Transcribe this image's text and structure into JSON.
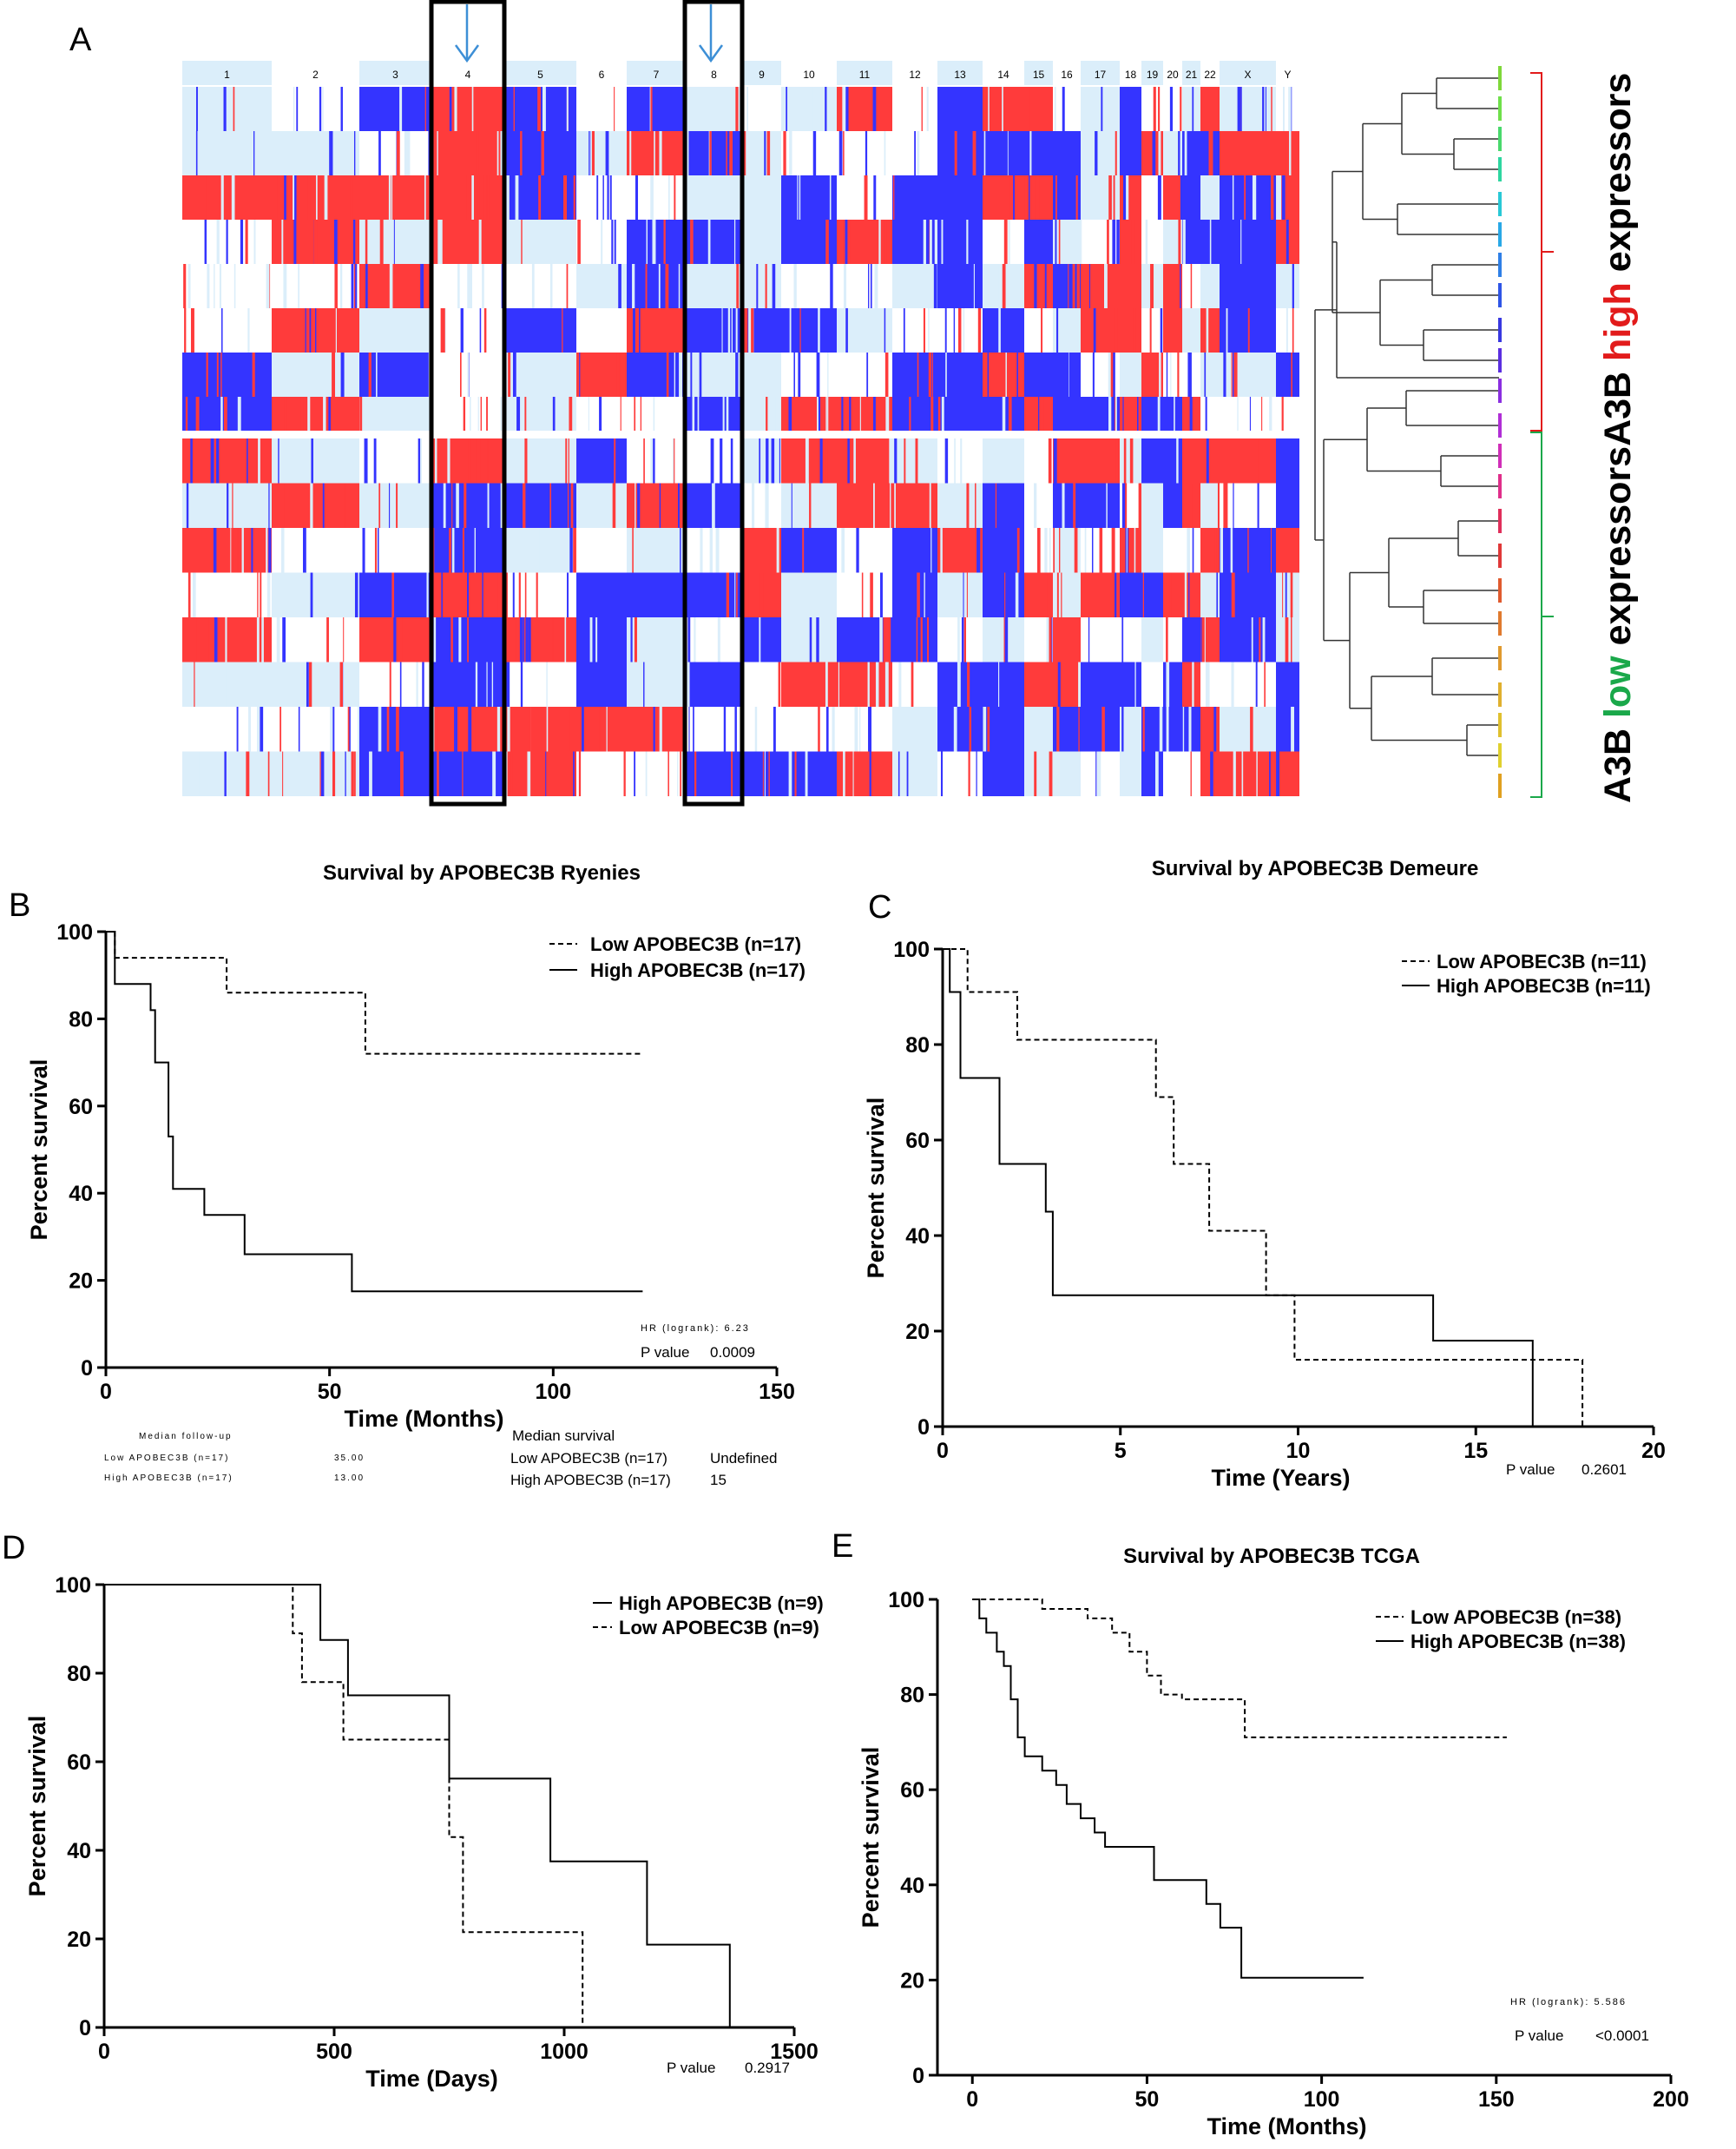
{
  "panel_a": {
    "letter": "A",
    "chromosomes": [
      "1",
      "2",
      "3",
      "4",
      "5",
      "6",
      "7",
      "8",
      "9",
      "10",
      "11",
      "12",
      "13",
      "14",
      "15",
      "16",
      "17",
      "18",
      "19",
      "20",
      "21",
      "22",
      "X",
      "Y"
    ],
    "side_label": {
      "part1": "A3B ",
      "low": "low",
      "part2": " expressors",
      "part3": "A3B ",
      "high": "high",
      "part4": " expressors"
    },
    "colors": {
      "gain": "#ff3b3b",
      "loss": "#3434ff",
      "neutral": "#dbeefa",
      "low": "#1aa84a",
      "high": "#e21b1b"
    }
  },
  "panels": {
    "B": {
      "letter": "B",
      "title": "Survival by APOBEC3B Ryenies",
      "legend_low": "Low APOBEC3B (n=17)",
      "legend_high": "High APOBEC3B (n=17)",
      "hr": "HR (logrank): 6.23",
      "p_label": "P value",
      "p_value": "0.0009",
      "followup": {
        "header": "Median follow-up",
        "low": "Low APOBEC3B (n=17)",
        "low_val": "35.00",
        "high": "High APOBEC3B (n=17)",
        "high_val": "13.00"
      },
      "median": {
        "header": "Median survival",
        "low": "Low APOBEC3B (n=17)",
        "low_val": "Undefined",
        "high": "High APOBEC3B (n=17)",
        "high_val": "15"
      }
    },
    "C": {
      "letter": "C",
      "title": "Survival by APOBEC3B Demeure",
      "legend_low": "Low APOBEC3B (n=11)",
      "legend_high": "High APOBEC3B (n=11)",
      "p_label": "P value",
      "p_value": "0.2601"
    },
    "D": {
      "letter": "D",
      "legend_high": "High APOBEC3B (n=9)",
      "legend_low": "Low APOBEC3B (n=9)",
      "p_label": "P value",
      "p_value": "0.2917"
    },
    "E": {
      "letter": "E",
      "title": "Survival by APOBEC3B TCGA",
      "legend_low": "Low APOBEC3B (n=38)",
      "legend_high": "High APOBEC3B (n=38)",
      "hr": "HR (logrank): 5.586",
      "p_label": "P value",
      "p_value": "<0.0001"
    }
  },
  "chart_data": [
    {
      "id": "B",
      "type": "line",
      "title": "Survival by APOBEC3B Ryenies",
      "xlabel": "Time (Months)",
      "ylabel": "Percent survival",
      "xlim": [
        0,
        150
      ],
      "ylim": [
        0,
        100
      ],
      "xticks": [
        0,
        50,
        100,
        150
      ],
      "yticks": [
        0,
        20,
        40,
        60,
        80,
        100
      ],
      "series": [
        {
          "name": "Low APOBEC3B (n=17)",
          "style": "dashed",
          "x": [
            0,
            2,
            2,
            27,
            27,
            58,
            58,
            120
          ],
          "y": [
            100,
            100,
            94,
            94,
            86,
            86,
            72,
            72
          ]
        },
        {
          "name": "High APOBEC3B (n=17)",
          "style": "solid",
          "x": [
            0,
            2,
            2,
            10,
            10,
            11,
            11,
            14,
            14,
            15,
            15,
            22,
            22,
            31,
            31,
            55,
            55,
            120
          ],
          "y": [
            100,
            100,
            88,
            88,
            82,
            82,
            70,
            70,
            53,
            53,
            41,
            41,
            35,
            35,
            26,
            26,
            17.5,
            17.5
          ]
        }
      ]
    },
    {
      "id": "C",
      "type": "line",
      "title": "Survival by APOBEC3B Demeure",
      "xlabel": "Time (Years)",
      "ylabel": "Percent survival",
      "xlim": [
        0,
        20
      ],
      "ylim": [
        0,
        100
      ],
      "xticks": [
        0,
        5,
        10,
        15,
        20
      ],
      "yticks": [
        0,
        20,
        40,
        60,
        80,
        100
      ],
      "series": [
        {
          "name": "Low APOBEC3B (n=11)",
          "style": "dashed",
          "x": [
            0,
            0.7,
            0.7,
            2.1,
            2.1,
            6.0,
            6.0,
            6.5,
            6.5,
            7.5,
            7.5,
            9.1,
            9.1,
            9.9,
            9.9,
            18.0,
            18.0
          ],
          "y": [
            100,
            100,
            91,
            91,
            81,
            81,
            69,
            69,
            55,
            55,
            41,
            41,
            27.5,
            27.5,
            14,
            14,
            0
          ]
        },
        {
          "name": "High APOBEC3B (n=11)",
          "style": "solid",
          "x": [
            0,
            0.2,
            0.2,
            0.5,
            0.5,
            1.6,
            1.6,
            2.9,
            2.9,
            3.1,
            3.1,
            13.8,
            13.8,
            16.6,
            16.6
          ],
          "y": [
            100,
            100,
            91,
            91,
            73,
            73,
            55,
            55,
            45,
            45,
            27.5,
            27.5,
            18,
            18,
            0
          ]
        }
      ]
    },
    {
      "id": "D",
      "type": "line",
      "title": "",
      "xlabel": "Time (Days)",
      "ylabel": "Percent survival",
      "xlim": [
        0,
        1500
      ],
      "ylim": [
        0,
        100
      ],
      "xticks": [
        0,
        500,
        1000,
        1500
      ],
      "yticks": [
        0,
        20,
        40,
        60,
        80,
        100
      ],
      "series": [
        {
          "name": "High APOBEC3B (n=9)",
          "style": "solid",
          "x": [
            0,
            470,
            470,
            530,
            530,
            750,
            750,
            970,
            970,
            1180,
            1180,
            1360,
            1360
          ],
          "y": [
            100,
            100,
            87.5,
            87.5,
            75,
            75,
            56.2,
            56.2,
            37.5,
            37.5,
            18.7,
            18.7,
            0
          ]
        },
        {
          "name": "Low APOBEC3B (n=9)",
          "style": "dashed",
          "x": [
            0,
            410,
            410,
            430,
            430,
            520,
            520,
            750,
            750,
            780,
            780,
            1040,
            1040
          ],
          "y": [
            100,
            100,
            89,
            89,
            78,
            78,
            65,
            65,
            43,
            43,
            21.5,
            21.5,
            0
          ]
        }
      ]
    },
    {
      "id": "E",
      "type": "line",
      "title": "Survival by APOBEC3B TCGA",
      "xlabel": "Time (Months)",
      "ylabel": "Percent survival",
      "xlim": [
        -10,
        200
      ],
      "ylim": [
        0,
        100
      ],
      "xticks": [
        0,
        50,
        100,
        150,
        200
      ],
      "yticks": [
        0,
        20,
        40,
        60,
        80,
        100
      ],
      "series": [
        {
          "name": "Low APOBEC3B (n=38)",
          "style": "dashed",
          "x": [
            0,
            20,
            20,
            33,
            33,
            40,
            40,
            45,
            45,
            50,
            50,
            54,
            54,
            60,
            60,
            78,
            78,
            153
          ],
          "y": [
            100,
            100,
            98,
            98,
            96,
            96,
            93,
            93,
            89,
            89,
            84,
            84,
            80,
            80,
            79,
            79,
            71,
            71
          ]
        },
        {
          "name": "High APOBEC3B (n=38)",
          "style": "solid",
          "x": [
            0,
            2,
            2,
            4,
            4,
            7,
            7,
            9,
            9,
            11,
            11,
            13,
            13,
            15,
            15,
            20,
            20,
            24,
            24,
            27,
            27,
            31,
            31,
            35,
            35,
            38,
            38,
            52,
            52,
            67,
            67,
            71,
            71,
            77,
            77,
            112
          ],
          "y": [
            100,
            100,
            96,
            96,
            93,
            93,
            89,
            89,
            86,
            86,
            79,
            79,
            71,
            71,
            67,
            67,
            64,
            64,
            61,
            61,
            57,
            57,
            54,
            54,
            51,
            51,
            48,
            48,
            41,
            41,
            36,
            36,
            31,
            31,
            20.5,
            20.5
          ]
        }
      ]
    }
  ]
}
